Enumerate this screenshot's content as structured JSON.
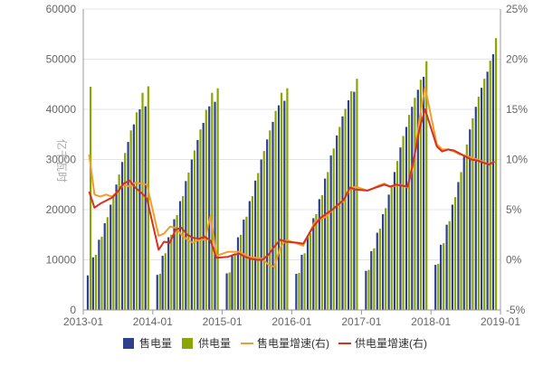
{
  "chart_data": {
    "type": "bar",
    "ylabel": "亿千瓦时",
    "x_ticks": [
      "2013-01",
      "2014-01",
      "2015-01",
      "2016-01",
      "2017-01",
      "2018-01",
      "2019-01"
    ],
    "ylim_left": [
      0,
      60000
    ],
    "yticks_left": [
      "0",
      "10000",
      "20000",
      "30000",
      "40000",
      "50000",
      "60000"
    ],
    "ylim_right": [
      -5,
      25
    ],
    "yticks_right": [
      "-5%",
      "0%",
      "5%",
      "10%",
      "15%",
      "20%",
      "25%"
    ],
    "grid": "horizontal",
    "legend_position": "bottom",
    "months": [
      "2013-02",
      "2013-03",
      "2013-04",
      "2013-05",
      "2013-06",
      "2013-07",
      "2013-08",
      "2013-09",
      "2013-10",
      "2013-11",
      "2013-12",
      "2014-02",
      "2014-03",
      "2014-04",
      "2014-05",
      "2014-06",
      "2014-07",
      "2014-08",
      "2014-09",
      "2014-10",
      "2014-11",
      "2014-12",
      "2015-02",
      "2015-03",
      "2015-04",
      "2015-05",
      "2015-06",
      "2015-07",
      "2015-08",
      "2015-09",
      "2015-10",
      "2015-11",
      "2015-12",
      "2016-02",
      "2016-03",
      "2016-04",
      "2016-05",
      "2016-06",
      "2016-07",
      "2016-08",
      "2016-09",
      "2016-10",
      "2016-11",
      "2016-12",
      "2017-02",
      "2017-03",
      "2017-04",
      "2017-05",
      "2017-06",
      "2017-07",
      "2017-08",
      "2017-09",
      "2017-10",
      "2017-11",
      "2017-12",
      "2018-02",
      "2018-03",
      "2018-04",
      "2018-05",
      "2018-06",
      "2018-07",
      "2018-08",
      "2018-09",
      "2018-10",
      "2018-11",
      "2018-12"
    ],
    "series": [
      {
        "name": "售电量",
        "axis": "left",
        "kind": "bar",
        "color": "#2e3f8f",
        "values": [
          6900,
          10500,
          14000,
          17300,
          21000,
          25000,
          29500,
          33500,
          37000,
          40000,
          40600,
          7000,
          10800,
          14500,
          18100,
          21700,
          25700,
          30000,
          33900,
          37300,
          40600,
          41500,
          7300,
          11000,
          14500,
          18000,
          21700,
          25800,
          30000,
          34000,
          37500,
          40800,
          41700,
          7200,
          11000,
          14800,
          18300,
          22100,
          26200,
          30800,
          34800,
          38600,
          41800,
          43500,
          7800,
          11700,
          15400,
          19100,
          23000,
          27500,
          32400,
          36500,
          40500,
          43900,
          46500,
          9000,
          13000,
          17000,
          21000,
          25500,
          30600,
          36000,
          40500,
          44300,
          47500,
          51000
        ]
      },
      {
        "name": "供电量",
        "axis": "left",
        "kind": "bar",
        "color": "#8aa600",
        "values": [
          44500,
          11000,
          14600,
          18500,
          22800,
          27000,
          31300,
          35800,
          39400,
          43300,
          44600,
          7200,
          11300,
          15000,
          18900,
          22700,
          27400,
          31800,
          36000,
          39900,
          43300,
          44200,
          7500,
          11300,
          15000,
          18600,
          22700,
          27300,
          31700,
          35800,
          39700,
          43300,
          44200,
          7400,
          11300,
          15300,
          19100,
          22900,
          27500,
          32200,
          36500,
          40100,
          43600,
          46100,
          8000,
          12300,
          16200,
          20300,
          24500,
          29700,
          34700,
          38900,
          42300,
          45900,
          49600,
          9200,
          13300,
          17700,
          22500,
          27500,
          33000,
          38200,
          42500,
          46100,
          49700,
          54200
        ]
      },
      {
        "name": "售电量增速(右)",
        "axis": "right",
        "kind": "line",
        "color": "#f39c2a",
        "values": [
          10.5,
          6.5,
          6.3,
          6.5,
          6.3,
          6.8,
          7.5,
          7.3,
          7.7,
          7.6,
          7.5,
          2.4,
          2.6,
          3.3,
          3.2,
          2.5,
          2.0,
          1.7,
          2.0,
          2.0,
          4.4,
          0.4,
          0.8,
          0.8,
          0.8,
          0.5,
          0.2,
          0.2,
          0.1,
          -0.5,
          -0.7,
          1.2,
          2.0,
          1.6,
          1.4,
          2.6,
          3.8,
          4.1,
          4.3,
          5.0,
          5.5,
          5.9,
          7.1,
          7.3,
          6.9,
          7.1,
          7.4,
          7.6,
          7.3,
          7.4,
          7.5,
          7.2,
          9.5,
          14.0,
          17.2,
          11.5,
          11.0,
          11.0,
          10.8,
          10.5,
          10.4,
          10.2,
          10.0,
          9.8,
          9.5,
          9.8
        ]
      },
      {
        "name": "供电量增速(右)",
        "axis": "right",
        "kind": "line",
        "color": "#d7301f",
        "values": [
          6.8,
          5.2,
          5.6,
          5.9,
          6.2,
          6.8,
          7.6,
          7.9,
          7.2,
          6.7,
          6.1,
          1.0,
          1.8,
          1.7,
          3.0,
          3.2,
          2.5,
          2.2,
          2.1,
          2.3,
          1.9,
          0.2,
          0.3,
          0.5,
          0.6,
          0.3,
          0.1,
          0.0,
          0.0,
          0.5,
          1.3,
          2.0,
          1.8,
          1.7,
          1.6,
          2.6,
          3.5,
          4.2,
          4.6,
          5.0,
          5.5,
          6.0,
          7.2,
          7.0,
          6.9,
          7.1,
          7.3,
          7.5,
          7.3,
          7.5,
          7.4,
          7.3,
          9.8,
          13.0,
          15.0,
          11.3,
          10.8,
          11.0,
          10.9,
          10.6,
          10.3,
          10.0,
          9.9,
          9.7,
          9.5,
          9.8
        ]
      }
    ]
  }
}
